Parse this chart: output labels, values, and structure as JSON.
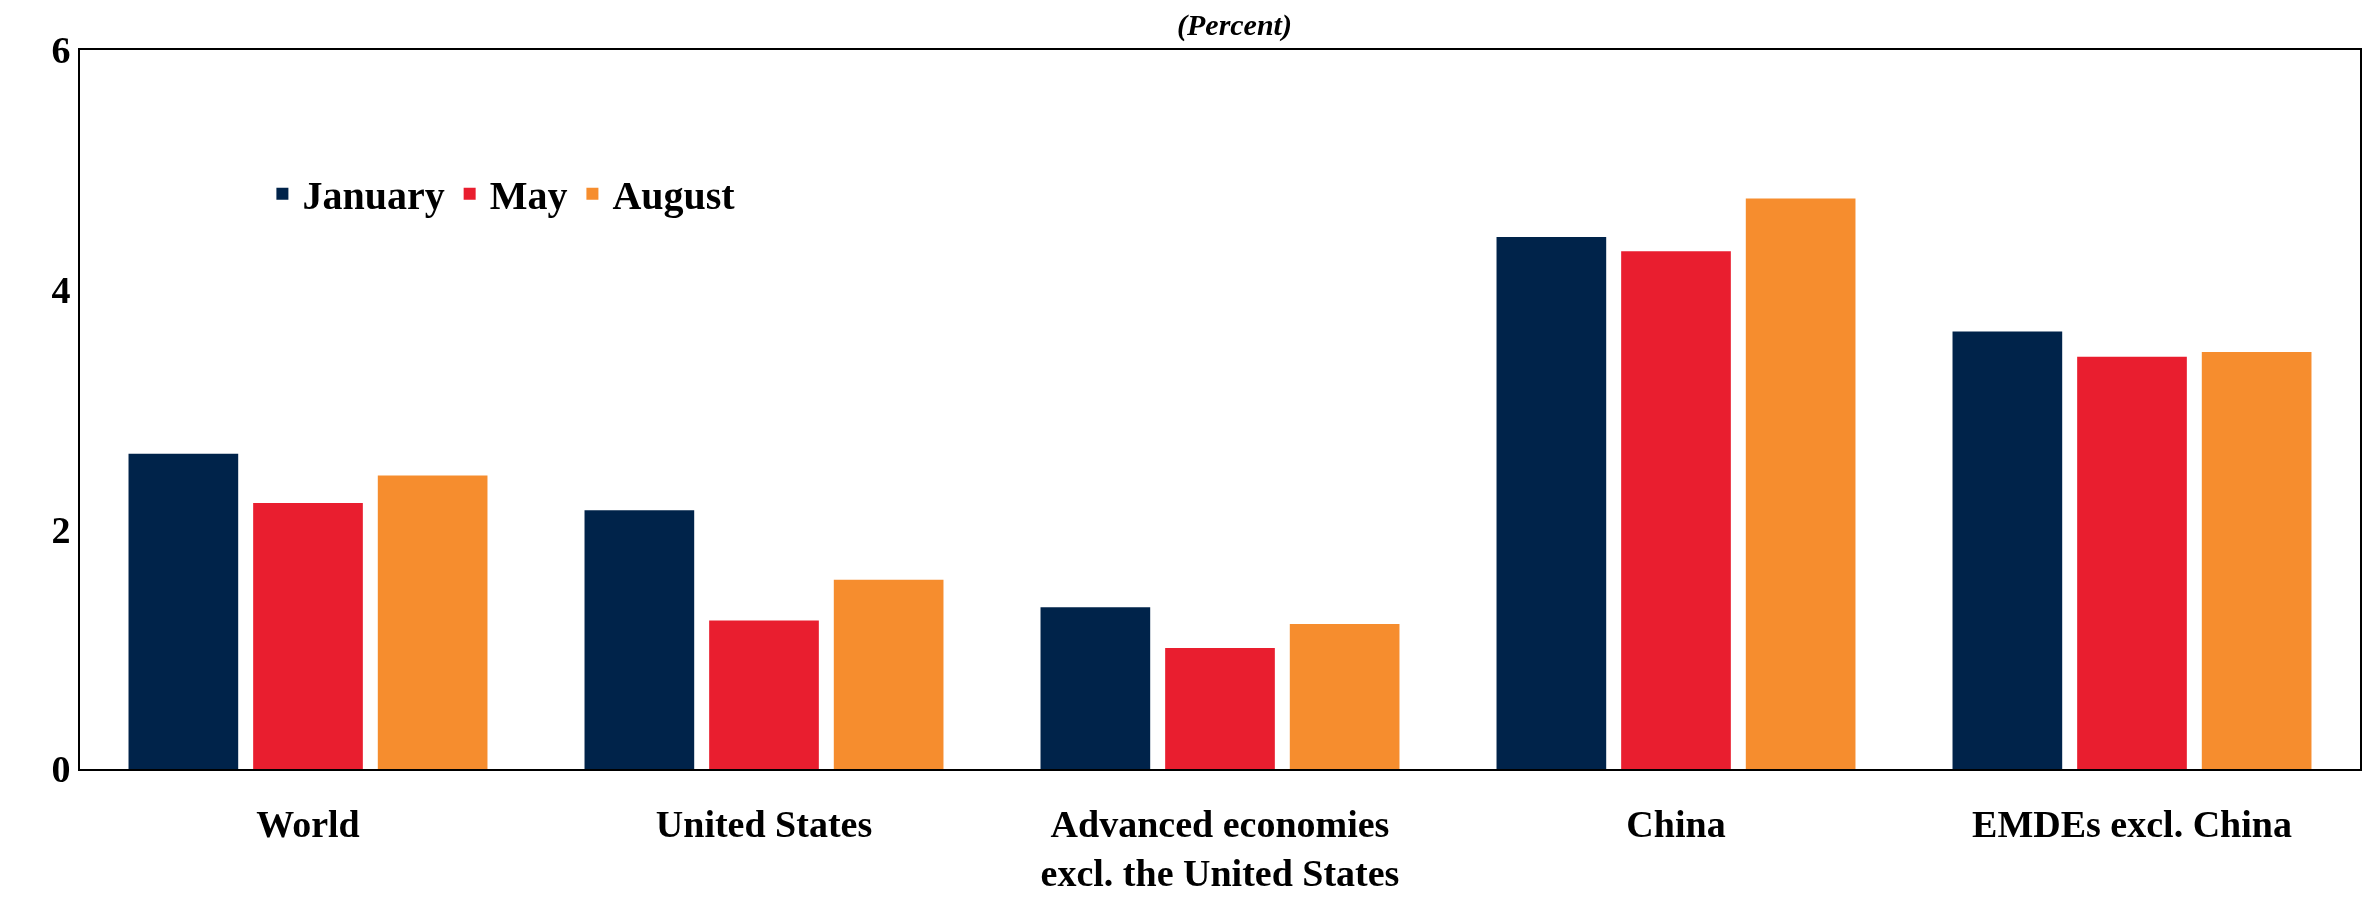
{
  "chart_data": {
    "type": "bar",
    "title": "(Percent)",
    "categories": [
      "World",
      "United States",
      "Advanced economies\nexcl. the United States",
      "China",
      "EMDEs excl. China"
    ],
    "series": [
      {
        "name": "January",
        "color": "#00234a",
        "values": [
          2.63,
          2.16,
          1.35,
          4.44,
          3.65
        ]
      },
      {
        "name": "May",
        "color": "#e91e2f",
        "values": [
          2.22,
          1.24,
          1.01,
          4.32,
          3.44
        ]
      },
      {
        "name": "August",
        "color": "#f68d2e",
        "values": [
          2.45,
          1.58,
          1.21,
          4.76,
          3.48
        ]
      }
    ],
    "ylim": [
      0,
      6
    ],
    "yticks": [
      0,
      2,
      4,
      6
    ],
    "legend": "top left"
  }
}
